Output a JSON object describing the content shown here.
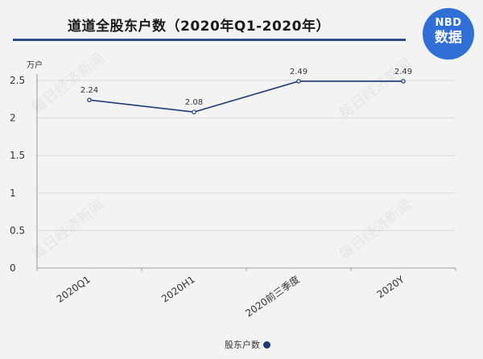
{
  "header": {
    "title": "道道全股东户数（2020年Q1-2020年）",
    "logo_text": "NBD",
    "logo_sub": "数据"
  },
  "chart_data": {
    "type": "line",
    "title": "道道全股东户数（2020年Q1-2020年）",
    "categories": [
      "2020Q1",
      "2020H1",
      "2020前三季度",
      "2020Y"
    ],
    "series": [
      {
        "name": "股东户数",
        "values": [
          2.24,
          2.08,
          2.49,
          2.49
        ]
      }
    ],
    "y_unit_label": "万户",
    "ylim": [
      0,
      2.5
    ],
    "yticks": [
      "0",
      "0.5",
      "1",
      "1.5",
      "2",
      "2.5"
    ],
    "grid": true,
    "legend_position": "bottom",
    "watermark": "每日经济新闻",
    "colors": {
      "series": "#1f3a7a",
      "grid": "#d9d9d9",
      "axis": "#999999"
    }
  }
}
